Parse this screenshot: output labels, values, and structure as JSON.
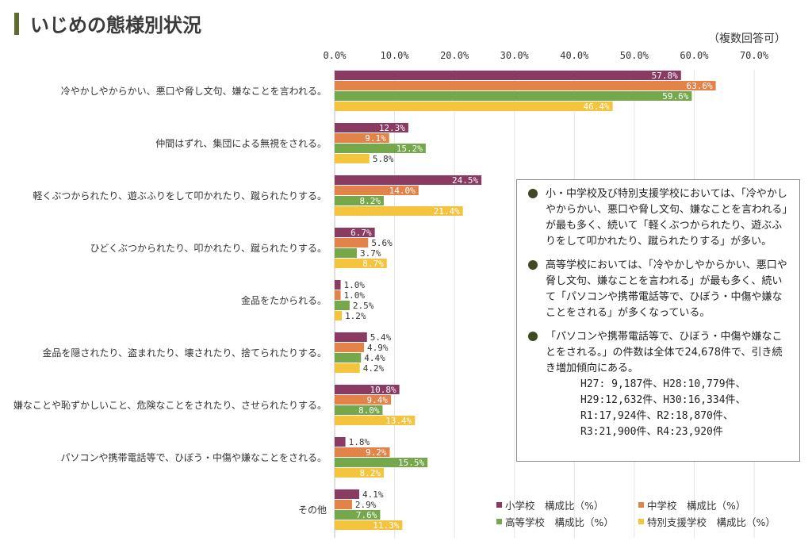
{
  "header": {
    "title": "いじめの態様別状況",
    "note": "（複数回答可）"
  },
  "colors": {
    "elementary": "#8b3a62",
    "junior_high": "#e2844a",
    "high_school": "#74a84a",
    "special_support": "#f4c43f",
    "title_accent": "#5d6b2e"
  },
  "chart_data": {
    "type": "bar",
    "orientation": "horizontal",
    "xlim": [
      0,
      70
    ],
    "ticks": [
      "0.0%",
      "10.0%",
      "20.0%",
      "30.0%",
      "40.0%",
      "50.0%",
      "60.0%",
      "70.0%"
    ],
    "grid": true,
    "legend_position": "bottom-right",
    "categories": [
      "冷やかしやからかい、悪口や脅し文句、嫌なことを言われる。",
      "仲間はずれ、集団による無視をされる。",
      "軽くぶつかられたり、遊ぶふりをして叩かれたり、蹴られたりする。",
      "ひどくぶつかられたり、叩かれたり、蹴られたりする。",
      "金品をたかられる。",
      "金品を隠されたり、盗まれたり、壊されたり、捨てられたりする。",
      "嫌なことや恥ずかしいこと、危険なことをされたり、させられたりする。",
      "パソコンや携帯電話等で、ひぼう・中傷や嫌なことをされる。",
      "その他"
    ],
    "series": [
      {
        "name": "小学校　構成比（%）",
        "values": [
          57.8,
          12.3,
          24.5,
          6.7,
          1.0,
          5.4,
          10.8,
          1.8,
          4.1
        ],
        "labels": [
          "57.8%",
          "12.3%",
          "24.5%",
          "6.7%",
          "1.0%",
          "5.4%",
          "10.8%",
          "1.8%",
          "4.1%"
        ]
      },
      {
        "name": "中学校　構成比（%）",
        "values": [
          63.6,
          9.1,
          14.0,
          5.6,
          1.0,
          4.9,
          9.4,
          9.2,
          2.9
        ],
        "labels": [
          "63.6%",
          "9.1%",
          "14.0%",
          "5.6%",
          "1.0%",
          "4.9%",
          "9.4%",
          "9.2%",
          "2.9%"
        ]
      },
      {
        "name": "高等学校　構成比（%）",
        "values": [
          59.6,
          15.2,
          8.2,
          3.7,
          2.5,
          4.4,
          8.0,
          15.5,
          7.6
        ],
        "labels": [
          "59.6%",
          "15.2%",
          "8.2%",
          "3.7%",
          "2.5%",
          "4.4%",
          "8.0%",
          "15.5%",
          "7.6%"
        ]
      },
      {
        "name": "特別支援学校　構成比（%）",
        "values": [
          46.4,
          5.8,
          21.4,
          8.7,
          1.2,
          4.2,
          13.4,
          8.2,
          11.3
        ],
        "labels": [
          "46.4%",
          "5.8%",
          "21.4%",
          "8.7%",
          "1.2%",
          "4.2%",
          "13.4%",
          "8.2%",
          "11.3%"
        ]
      }
    ]
  },
  "summary": {
    "items": [
      {
        "text": "小・中学校及び特別支援学校においては、「冷やかしやからかい、悪口や脅し文句、嫌なことを言われる」が最も多く、続いて「軽くぶつかられたり、遊ぶふりをして叩かれたり、蹴られたりする」が多い。"
      },
      {
        "text": "高等学校においては、「冷やかしやからかい、悪口や脅し文句、嫌なことを言われる」が最も多く、続いて「パソコンや携帯電話等で、ひぼう・中傷や嫌なことをされる」が多くなっている。"
      },
      {
        "text": "「パソコンや携帯電話等で、ひぼう・中傷や嫌なことをされる。」の件数は全体で24,678件で、引き続き増加傾向にある。"
      }
    ],
    "sublines": [
      "H27: 9,187件、H28:10,779件、",
      "H29:12,632件、H30:16,334件、",
      "R1:17,924件、R2:18,870件、",
      "R3:21,900件、R4:23,920件"
    ]
  }
}
